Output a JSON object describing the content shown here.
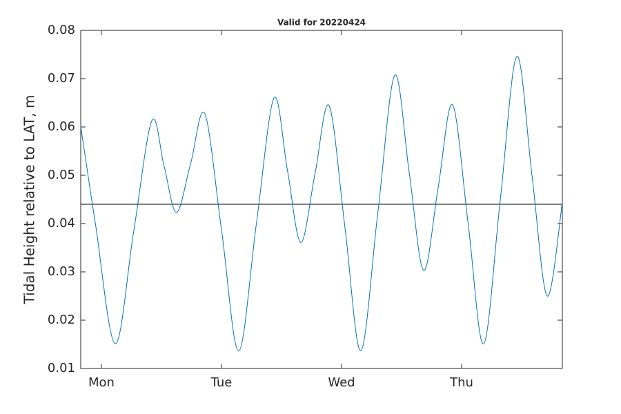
{
  "chart_data": {
    "type": "line",
    "title": "Valid for 20220424",
    "y_label": "Tidal Height relative to LAT, m",
    "x": [
      -0.172,
      -0.05,
      0.115,
      0.268,
      0.42,
      0.523,
      0.626,
      0.744,
      0.862,
      1.003,
      1.144,
      1.29,
      1.437,
      1.549,
      1.661,
      1.779,
      1.897,
      2.029,
      2.161,
      2.302,
      2.443,
      2.564,
      2.684,
      2.805,
      2.925,
      3.055,
      3.184,
      3.322,
      3.46,
      3.587,
      3.713,
      3.839
    ],
    "series": [
      {
        "color": "#0072bd",
        "values": [
          0.0601,
          0.04,
          0.0151,
          0.0382,
          0.0613,
          0.0518,
          0.0423,
          0.0525,
          0.0627,
          0.0382,
          0.0136,
          0.0398,
          0.066,
          0.0511,
          0.0361,
          0.0503,
          0.0644,
          0.0391,
          0.0137,
          0.0422,
          0.0707,
          0.0505,
          0.0303,
          0.0475,
          0.0646,
          0.0399,
          0.0151,
          0.0449,
          0.0746,
          0.0498,
          0.025,
          0.0444
        ]
      }
    ],
    "reference_line": {
      "value": 0.044,
      "color": "#000000"
    },
    "xlim": [
      -0.172,
      3.839
    ],
    "xticks": [
      {
        "value": 0,
        "label": "Mon"
      },
      {
        "value": 1,
        "label": "Tue"
      },
      {
        "value": 2,
        "label": "Wed"
      },
      {
        "value": 3,
        "label": "Thu"
      }
    ],
    "ylim": [
      0.01,
      0.08
    ],
    "yticks": [
      0.01,
      0.02,
      0.03,
      0.04,
      0.05,
      0.06,
      0.07,
      0.08
    ]
  }
}
